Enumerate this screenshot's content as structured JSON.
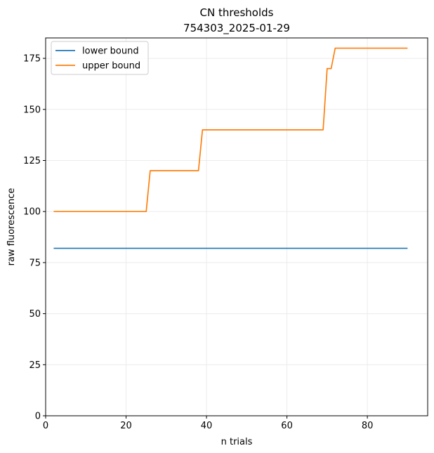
{
  "chart_data": {
    "type": "line",
    "title": "CN thresholds",
    "subtitle": "754303_2025-01-29",
    "xlabel": "n trials",
    "ylabel": "raw fluorescence",
    "xlim": [
      0,
      95
    ],
    "ylim": [
      0,
      185
    ],
    "xticks": [
      0,
      20,
      40,
      60,
      80
    ],
    "yticks": [
      0,
      25,
      50,
      75,
      100,
      125,
      150,
      175
    ],
    "grid": true,
    "legend_position": "top-left",
    "series": [
      {
        "name": "lower bound",
        "color": "#1f77b4",
        "x": [
          2,
          90
        ],
        "y": [
          82,
          82
        ]
      },
      {
        "name": "upper bound",
        "color": "#ff7f0e",
        "x": [
          2,
          25,
          26,
          38,
          39,
          69,
          70,
          71,
          72,
          90
        ],
        "y": [
          100,
          100,
          120,
          120,
          140,
          140,
          170,
          170,
          180,
          180
        ]
      }
    ]
  }
}
